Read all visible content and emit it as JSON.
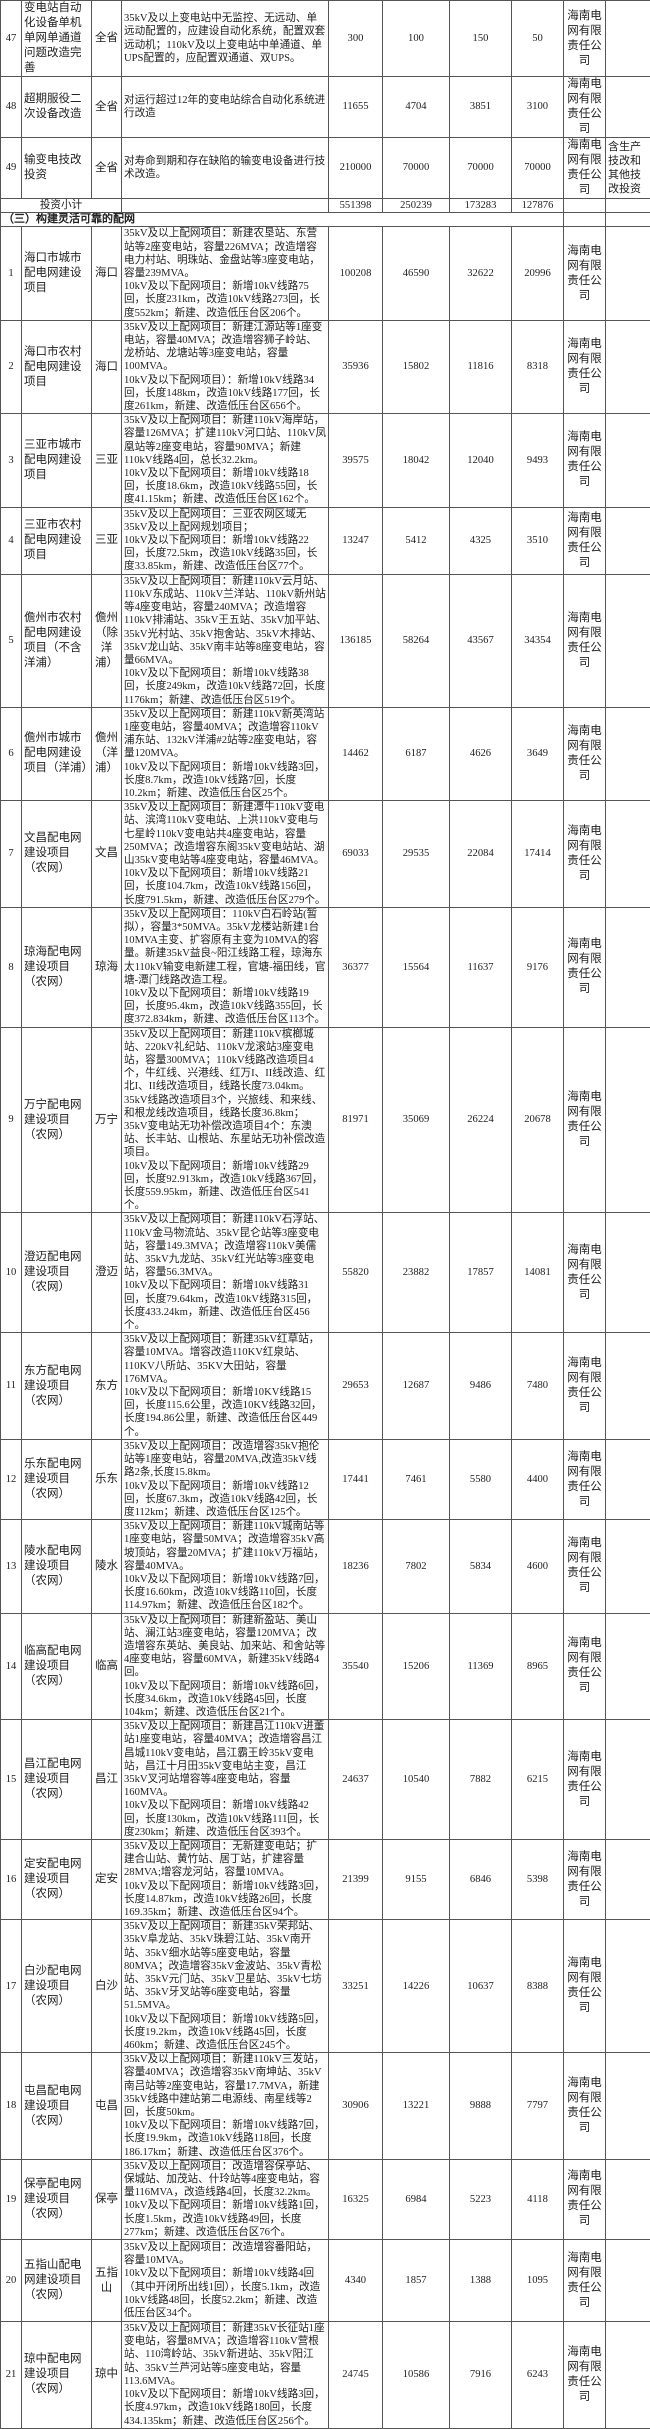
{
  "company_default": "海南电网有限责任公司",
  "top_rows": [
    {
      "no": "47",
      "name": "变电站自动化设备单机单网单通道问题改造完善",
      "location": "全省",
      "description": "35kV及以上变电站中无监控、无远动、单远动配置的，应建设自动化系统，配置双套远动机；110kV及以上变电站中单通道、单UPS配置的，应配置双通道、双UPS。",
      "total": "300",
      "v1": "100",
      "v2": "150",
      "v3": "50",
      "company": "海南电网有限责任公司",
      "note": ""
    },
    {
      "no": "48",
      "name": "超期服役二次设备改造",
      "location": "全省",
      "description": "对运行超过12年的变电站综合自动化系统进行改造",
      "total": "11655",
      "v1": "4704",
      "v2": "3851",
      "v3": "3100",
      "company": "海南电网有限责任公司",
      "note": ""
    },
    {
      "no": "49",
      "name": "输变电技改投资",
      "location": "全省",
      "description": "对寿命到期和存在缺陷的输变电设备进行技术改造。",
      "total": "210000",
      "v1": "70000",
      "v2": "70000",
      "v3": "70000",
      "company": "海南电网有限责任公司",
      "note": "含生产技改和其他技改投资"
    }
  ],
  "subtotal": {
    "label": "投资小计",
    "total": "551398",
    "v1": "250239",
    "v2": "173283",
    "v3": "127876"
  },
  "section_title": "（三）构建灵活可靠的配网",
  "rows": [
    {
      "no": "1",
      "name": "海口市城市配电网建设项目",
      "location": "海口",
      "description": "35kV及以上配网项目：新建农垦站、东营站等2座变电站，容量226MVA；改造增容电力村站、明珠站、金盘站等3座变电站，容量239MVA。\n10kV及以下配网项目：新增10kV线路75回，长度231km，改造10kV线路273回，长度552km；新建、改造低压台区206个。",
      "total": "100208",
      "v1": "46590",
      "v2": "32622",
      "v3": "20996",
      "company": "海南电网有限责任公司",
      "note": ""
    },
    {
      "no": "2",
      "name": "海口市农村配电网建设项目",
      "location": "海口",
      "description": "35kV及以上配网项目：新建江源站等1座变电站，容量40MVA；改造增容狮子岭站、龙桥站、龙塘站等3座变电站，容量100MVA。\n10kV及以下配网项目）：新增10kV线路34回，长度148km，改造10kV线路177回，长度261km，新建、改造低压台区656个。",
      "total": "35936",
      "v1": "15802",
      "v2": "11816",
      "v3": "8318",
      "company": "海南电网有限责任公司",
      "note": ""
    },
    {
      "no": "3",
      "name": "三亚市城市配电网建设项目",
      "location": "三亚",
      "description": "35kV及以上配网项目：新建110kV海岸站，容量126MVA；扩建110kV河口站、110kV凤凰站等2座变电站，容量90MVA；新建110kV线路4回，总长32.2km。\n10kV及以下配网项目：新增10kV线路18回，长度18.6km，改造10kV线路55回，长度41.15km；新建、改造低压台区162个。",
      "total": "39575",
      "v1": "18042",
      "v2": "12040",
      "v3": "9493",
      "company": "海南电网有限责任公司",
      "note": ""
    },
    {
      "no": "4",
      "name": "三亚市农村配电网建设项目",
      "location": "三亚",
      "description": "35kV及以上配网项目：三亚农网区域无35kV及以上配网规划项目；\n10kV及以下配网项目：新增10kV线路22回，长度72.5km，改造10kV线路35回，长度33.85km，新建、改造低压台区77个。",
      "total": "13247",
      "v1": "5412",
      "v2": "4325",
      "v3": "3510",
      "company": "海南电网有限责任公司",
      "note": ""
    },
    {
      "no": "5",
      "name": "儋州市农村配电网建设项目（不含洋浦）",
      "location": "儋州（除洋浦）",
      "description": "35kV及以上配网项目：新建110kV云月站、110kV东成站、110kV兰洋站、110kV新州站等4座变电站，容量240MVA；改造增容110kV排浦站、35kV王五站、35kV加平站、35kV光村站、35kV抱舍站、35kV木排站、35kV龙山站、35kV南丰站等8座变电站，容量66MVA。\n10kV及以下配网项目：新增10kV线路38回，长度249km，改造10kV线路72回，长度1176km；新建、改造低压台区519个。",
      "total": "136185",
      "v1": "58264",
      "v2": "43567",
      "v3": "34354",
      "company": "海南电网有限责任公司",
      "note": ""
    },
    {
      "no": "6",
      "name": "儋州市城市配电网建设项目（洋浦）",
      "location": "儋州（洋浦）",
      "description": "35kV及以上配网项目：新建110kV新英湾站1座变电站，容量40MVA；改造增容110kV浦东站、132kV洋浦#2站等2座变电站，容量120MVA。\n10kV及以下配网项目：新增10kV线路3回，长度8.7km，改造10kV线路7回，长度10.2km；新建、改造低压台区25个。",
      "total": "14462",
      "v1": "6187",
      "v2": "4626",
      "v3": "3649",
      "company": "海南电网有限责任公司",
      "note": ""
    },
    {
      "no": "7",
      "name": "文昌配电网建设项目（农网）",
      "location": "文昌",
      "description": "35kV及以上配网项目：新建潭牛110kV变电站、滨湾110kV变电站、上洪110kV变电与七星岭110kV变电站共4座变电站，容量250MVA；改造增容东阁35kV变电站站、湖山35kV变电站等4座变电站，容量46MVA。\n10kV及以下配网项目：新增10kV线路21回，长度104.7km，改造10kV线路156回，长度791.5km，新建、改造低压台区279个。",
      "total": "69033",
      "v1": "29535",
      "v2": "22084",
      "v3": "17414",
      "company": "海南电网有限责任公司",
      "note": ""
    },
    {
      "no": "8",
      "name": "琼海配电网建设项目（农网）",
      "location": "琼海",
      "description": "35kV及以上配网项目：110kV白石岭站(暂拟），容量3*50MVA。35kV龙楼站新建1台10MVA主变、扩容原有主变为10MVA的容量。新建35kV益良~阳江线路工程，琼海东太110kV输变电新建工程，官塘-福田线，官塘-潭门线路改造工程。\n10kV及以下配网项目：新增10kV线路19回，长度95.4km，改造10kV线路355回，长度372.834km，新建、改造低压台区113个。",
      "total": "36377",
      "v1": "15564",
      "v2": "11637",
      "v3": "9176",
      "company": "海南电网有限责任公司",
      "note": ""
    },
    {
      "no": "9",
      "name": "万宁配电网建设项目（农网）",
      "location": "万宁",
      "description": "35kV及以上配网项目：新建110kV槟榔城站、220kV礼纪站、110kV龙滚站3座变电站，容量300MVA；110kV线路改造项目4个，牛红线、兴港线、红万I、II线改造、红北I、II线改造项目，线路长度73.04km。35kV线路改造项目3个，兴旅线、和来线、和根龙线改造项目，线路长度36.8km；35kV变电站无功补偿改造项目4个：东澳站、长丰站、山根站、东星站无功补偿改造项目。\n10kV及以下配网项目：新增10kV线路29回，长度92.913km，改造10kV线路367回，长度559.95km，新建、改造低压台区541个。",
      "total": "81971",
      "v1": "35069",
      "v2": "26224",
      "v3": "20678",
      "company": "海南电网有限责任公司",
      "note": ""
    },
    {
      "no": "10",
      "name": "澄迈配电网建设项目（农网）",
      "location": "澄迈",
      "description": "35kV及以上配网项目：新建110kV石浮站、110kV金马物流站、35kV昆仑站等3座变电站，容量149.3MVA；改造增容110kV美儒站、35kV九龙站、35kV红光站等3座变电站，容量56.3MVA。\n10kV及以下配网项目：新增10kV线路31回，长度79.64km，改造10kV线路315回，长度433.24km，新建、改造低压台区456个。",
      "total": "55820",
      "v1": "23882",
      "v2": "17857",
      "v3": "14081",
      "company": "海南电网有限责任公司",
      "note": ""
    },
    {
      "no": "11",
      "name": "东方配电网建设项目（农网）",
      "location": "东方",
      "description": "35kV及以上配网项目：新建35kV红草站，容量10MVA。增容改造110KV红泉站、110KV八所站、35KV大田站，容量176MVA。\n10kV及以下配网项目：新增10KV线路15回，长度115.6公里，改造10KV线路32回，长度194.86公里，新建、改造低压台区449个。",
      "total": "29653",
      "v1": "12687",
      "v2": "9486",
      "v3": "7480",
      "company": "海南电网有限责任公司",
      "note": ""
    },
    {
      "no": "12",
      "name": "乐东配电网建设项目（农网）",
      "location": "乐东",
      "description": "35kV及以上配网项目：改造增容35kV抱伦站等1座变电站，容量20MVA,改造35kV线路2条,长度15.8km。\n10kV及以下配网项目：新增10kV线路12回，长度67.3km，改造10kV线路42回，长度112km；新建、改造低压台区125个。",
      "total": "17441",
      "v1": "7461",
      "v2": "5580",
      "v3": "4400",
      "company": "海南电网有限责任公司",
      "note": ""
    },
    {
      "no": "13",
      "name": "陵水配电网建设项目（农网）",
      "location": "陵水",
      "description": "35kV及以上配网项目：新建110kV城南站等1座变电站，容量50MVA；改造增容35kV高坡顶站，容量20MVA；扩建110kV万福站，容量40MVA。\n10kV及以下配网项目：新增10kV线路7回，长度16.60km，改造10kV线路110回，长度114.97km；新建、改造低压台区182个。",
      "total": "18236",
      "v1": "7802",
      "v2": "5834",
      "v3": "4600",
      "company": "海南电网有限责任公司",
      "note": ""
    },
    {
      "no": "14",
      "name": "临高配电网建设项目（农网）",
      "location": "临高",
      "description": "35kV及以上配网项目：新建新盈站、美山站、澜江站3座变电站，容量120MVA；改造增容东英站、美良站、加来站、和舍站等4座变电站，容量60MVA，新建35kV线路4回。\n10kV及以下配网项目：新增10kV线路6回，长度34.6km，改造10kV线路45回，长度104km；新建、改造低压台区21个。",
      "total": "35540",
      "v1": "15206",
      "v2": "11369",
      "v3": "8965",
      "company": "海南电网有限责任公司",
      "note": ""
    },
    {
      "no": "15",
      "name": "昌江配电网建设项目（农网）",
      "location": "昌江",
      "description": "35kV及以上配网项目：新建昌江110kV进董站1座变电站，容量40MVA；改造增容昌江昌城110kV变电站，昌江霸王岭35kV变电站，昌江十月田35kV变电站主变，昌江35kV叉河站增容等4座变电站，容量160MVA。\n10kV及以下配网项目：新增10kV线路42回，长度130km，改造10kV线路111回，长度230km；新建、改造低压台区393个。",
      "total": "24637",
      "v1": "10540",
      "v2": "7882",
      "v3": "6215",
      "company": "海南电网有限责任公司",
      "note": ""
    },
    {
      "no": "16",
      "name": "定安配电网建设项目（农网）",
      "location": "定安",
      "description": "35kV及以上配网项目：无新建变电站；扩建合山站、黄竹站、居丁站，扩建容量28MVA;增容龙河站，容量10MVA。\n10kV及以下配网项目：新增10kV线路3回，长度14.87km，改造10kV线路26回，长度169.35km；新建、改造低压台区94个。",
      "total": "21399",
      "v1": "9155",
      "v2": "6846",
      "v3": "5398",
      "company": "海南电网有限责任公司",
      "note": ""
    },
    {
      "no": "17",
      "name": "白沙配电网建设项目（农网）",
      "location": "白沙",
      "description": "35kV及以上配网项目：新建35kV荣邦站、35kV阜龙站、35kV珠碧江站、35kV南开站、35kV细水站等5座变电站，容量80MVA；改造增容35kV金波站、35kV青松站、35kV元门站、35kV卫星站、35kV七坊站、35kV牙叉站等6座变电站，容量51.5MVA。\n10kV及以下配网项目：新增10kV线路5回，长度19.2km，改造10kV线路45回，长度460km；新建、改造低压台区245个。",
      "total": "33251",
      "v1": "14226",
      "v2": "10637",
      "v3": "8388",
      "company": "海南电网有限责任公司",
      "note": ""
    },
    {
      "no": "18",
      "name": "屯昌配电网建设项目（农网）",
      "location": "屯昌",
      "description": "35kV及以上配网项目：新建110kV三发站，容量40MVA；改造增容35kV南坤站、35kV南吕站等2座变电站，容量17.7MVA，新建35kV线路中建站第二电源线、南星线等2回，长度50km。\n10kV及以下配网项目：新增10kV线路7回，长度19.9km，改造10kV线路118回，长度186.17km；新建、改造低压台区376个。",
      "total": "30906",
      "v1": "13221",
      "v2": "9888",
      "v3": "7797",
      "company": "海南电网有限责任公司",
      "note": ""
    },
    {
      "no": "19",
      "name": "保亭配电网建设项目（农网）",
      "location": "保亭",
      "description": "35kV及以上配网项目：改造增容保亭站、保城站、加茂站、什玲站等4座变电站，容量116MVA，改造线路4回，长度32.2km。\n10kV及以下配网项目：新增10kV线路1回，长度1.5km，改造10kV线路49回，长度277km；新建、改造低压台区76个。",
      "total": "16325",
      "v1": "6984",
      "v2": "5223",
      "v3": "4118",
      "company": "海南电网有限责任公司",
      "note": ""
    },
    {
      "no": "20",
      "name": "五指山配电网建设项目（农网）",
      "location": "五指山",
      "description": "35kV及以上配网项目：改造增容番阳站，容量10MVA。\n10kV及以下配网项目：新增10kV线路4回（其中开闭所出线1回），长度5.1km，改造10kV线路48回，长度52.2km；新建、改造低压台区34个。",
      "total": "4340",
      "v1": "1857",
      "v2": "1388",
      "v3": "1095",
      "company": "海南电网有限责任公司",
      "note": ""
    },
    {
      "no": "21",
      "name": "琼中配电网建设项目（农网）",
      "location": "琼中",
      "description": "35kV及以上配网项目：新建35kV长征站1座变电站，容量8MVA；改造增容110kV营根站、110湾岭站、35kV新进站、35kV阳江站、35kV兰芦河站等5座变电站，容量113.6MVA。\n10kV及以下配网项目：新增10kV线路3回，长度4.97km，改造10kV线路180回，长度434.135km；新建、改造低压台区256个。",
      "total": "24745",
      "v1": "10586",
      "v2": "7916",
      "v3": "6243",
      "company": "海南电网有限责任公司",
      "note": ""
    }
  ]
}
